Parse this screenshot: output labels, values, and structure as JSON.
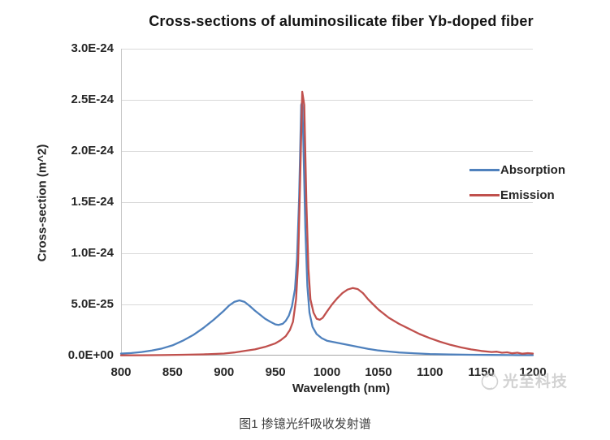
{
  "figure_caption": "图1 掺镱光纤吸收发射谱",
  "watermark": {
    "text": "光至科技",
    "logo": "doodle-ball-logo"
  },
  "colors": {
    "absorption": "#4F81BD",
    "emission": "#C0504D",
    "gridline": "#D9D9D9",
    "axis_line": "#A6A6A6",
    "plot_border": "#C6C6C6",
    "text": "#262626"
  },
  "chart_data": {
    "type": "line",
    "title": "Cross-sections of aluminosilicate fiber Yb-doped fiber",
    "xlabel": "Wavelength (nm)",
    "ylabel": "Cross-section (m^2)",
    "xlim": [
      800,
      1200
    ],
    "ylim": [
      0,
      3e-24
    ],
    "grid": true,
    "legend_position": "inside-right",
    "x_ticks": [
      800,
      850,
      900,
      950,
      1000,
      1050,
      1100,
      1150,
      1200
    ],
    "y_ticks": [
      0,
      5e-25,
      1e-24,
      1.5e-24,
      2e-24,
      2.5e-24,
      3e-24
    ],
    "y_tick_labels": [
      "0.0E+00",
      "5.0E-25",
      "1.0E-24",
      "1.5E-24",
      "2.0E-24",
      "2.5E-24",
      "3.0E-24"
    ],
    "series": [
      {
        "name": "Absorption",
        "color": "#4F81BD",
        "points": [
          [
            800,
            2e-26
          ],
          [
            810,
            2.5e-26
          ],
          [
            820,
            3.5e-26
          ],
          [
            830,
            5e-26
          ],
          [
            840,
            7e-26
          ],
          [
            850,
            1e-25
          ],
          [
            860,
            1.45e-25
          ],
          [
            870,
            2e-25
          ],
          [
            880,
            2.7e-25
          ],
          [
            890,
            3.5e-25
          ],
          [
            900,
            4.4e-25
          ],
          [
            905,
            4.9e-25
          ],
          [
            910,
            5.25e-25
          ],
          [
            915,
            5.4e-25
          ],
          [
            920,
            5.25e-25
          ],
          [
            925,
            4.85e-25
          ],
          [
            930,
            4.4e-25
          ],
          [
            935,
            4e-25
          ],
          [
            940,
            3.6e-25
          ],
          [
            945,
            3.3e-25
          ],
          [
            950,
            3.05e-25
          ],
          [
            953,
            3e-25
          ],
          [
            957,
            3.1e-25
          ],
          [
            960,
            3.4e-25
          ],
          [
            963,
            3.9e-25
          ],
          [
            966,
            4.8e-25
          ],
          [
            969,
            6.5e-25
          ],
          [
            971,
            9.5e-25
          ],
          [
            973,
            1.55e-24
          ],
          [
            975,
            2.45e-24
          ],
          [
            976,
            2.48e-24
          ],
          [
            977,
            2.15e-24
          ],
          [
            979,
            1.25e-24
          ],
          [
            981,
            6.8e-25
          ],
          [
            983,
            4.2e-25
          ],
          [
            986,
            2.8e-25
          ],
          [
            990,
            2.1e-25
          ],
          [
            995,
            1.7e-25
          ],
          [
            1000,
            1.45e-25
          ],
          [
            1010,
            1.25e-25
          ],
          [
            1020,
            1.05e-25
          ],
          [
            1030,
            8.5e-26
          ],
          [
            1040,
            6.5e-26
          ],
          [
            1050,
            5e-26
          ],
          [
            1060,
            4e-26
          ],
          [
            1070,
            3e-26
          ],
          [
            1080,
            2.5e-26
          ],
          [
            1090,
            2e-26
          ],
          [
            1100,
            1.5e-26
          ],
          [
            1120,
            1e-26
          ],
          [
            1140,
            8e-27
          ],
          [
            1160,
            6e-27
          ],
          [
            1180,
            5e-27
          ],
          [
            1200,
            4e-27
          ]
        ]
      },
      {
        "name": "Emission",
        "color": "#C0504D",
        "points": [
          [
            800,
            2e-27
          ],
          [
            820,
            3e-27
          ],
          [
            840,
            5e-27
          ],
          [
            860,
            8e-27
          ],
          [
            880,
            1.2e-26
          ],
          [
            900,
            2e-26
          ],
          [
            910,
            3e-26
          ],
          [
            920,
            4.5e-26
          ],
          [
            930,
            6e-26
          ],
          [
            940,
            8.5e-26
          ],
          [
            950,
            1.2e-25
          ],
          [
            955,
            1.5e-25
          ],
          [
            960,
            1.9e-25
          ],
          [
            964,
            2.5e-25
          ],
          [
            967,
            3.3e-25
          ],
          [
            970,
            5.5e-25
          ],
          [
            972,
            9e-25
          ],
          [
            974,
            1.7e-24
          ],
          [
            976,
            2.58e-24
          ],
          [
            978,
            2.45e-24
          ],
          [
            980,
            1.5e-24
          ],
          [
            982,
            8.5e-25
          ],
          [
            984,
            5.5e-25
          ],
          [
            987,
            4.2e-25
          ],
          [
            990,
            3.6e-25
          ],
          [
            993,
            3.5e-25
          ],
          [
            996,
            3.7e-25
          ],
          [
            1000,
            4.3e-25
          ],
          [
            1005,
            5e-25
          ],
          [
            1010,
            5.6e-25
          ],
          [
            1015,
            6.1e-25
          ],
          [
            1020,
            6.45e-25
          ],
          [
            1025,
            6.6e-25
          ],
          [
            1030,
            6.5e-25
          ],
          [
            1035,
            6.1e-25
          ],
          [
            1040,
            5.5e-25
          ],
          [
            1045,
            5e-25
          ],
          [
            1050,
            4.5e-25
          ],
          [
            1060,
            3.7e-25
          ],
          [
            1070,
            3.1e-25
          ],
          [
            1080,
            2.6e-25
          ],
          [
            1090,
            2.1e-25
          ],
          [
            1100,
            1.7e-25
          ],
          [
            1110,
            1.35e-25
          ],
          [
            1120,
            1.05e-25
          ],
          [
            1130,
            8e-26
          ],
          [
            1140,
            6e-26
          ],
          [
            1150,
            4.5e-26
          ],
          [
            1160,
            3.5e-26
          ],
          [
            1165,
            3.8e-26
          ],
          [
            1170,
            2.8e-26
          ],
          [
            1175,
            3.2e-26
          ],
          [
            1180,
            2.2e-26
          ],
          [
            1185,
            2.8e-26
          ],
          [
            1190,
            1.8e-26
          ],
          [
            1195,
            2.4e-26
          ],
          [
            1200,
            2e-26
          ]
        ]
      }
    ]
  }
}
